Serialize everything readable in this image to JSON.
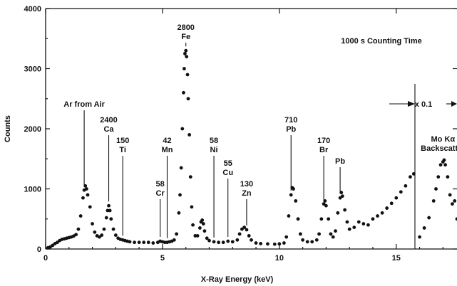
{
  "chart_data": {
    "type": "scatter",
    "title": "",
    "xlabel": "X-Ray Energy (keV)",
    "ylabel": "Counts",
    "xlim": [
      0,
      17.6
    ],
    "ylim": [
      0,
      4000
    ],
    "xticks": [
      "0",
      "5",
      "10",
      "15"
    ],
    "yticks": [
      "0",
      "1000",
      "2000",
      "3000",
      "4000"
    ],
    "grid": false,
    "series": [
      {
        "values": [
          [
            0.1,
            20
          ],
          [
            0.2,
            35
          ],
          [
            0.3,
            60
          ],
          [
            0.4,
            90
          ],
          [
            0.5,
            110
          ],
          [
            0.6,
            140
          ],
          [
            0.7,
            160
          ],
          [
            0.8,
            170
          ],
          [
            0.9,
            180
          ],
          [
            1.0,
            190
          ],
          [
            1.1,
            200
          ],
          [
            1.2,
            215
          ],
          [
            1.3,
            240
          ],
          [
            1.4,
            330
          ],
          [
            1.5,
            550
          ],
          [
            1.6,
            850
          ],
          [
            1.65,
            980
          ],
          [
            1.7,
            1050
          ],
          [
            1.75,
            1000
          ],
          [
            1.8,
            900
          ],
          [
            1.9,
            700
          ],
          [
            2.0,
            420
          ],
          [
            2.1,
            280
          ],
          [
            2.2,
            220
          ],
          [
            2.3,
            200
          ],
          [
            2.4,
            230
          ],
          [
            2.5,
            330
          ],
          [
            2.6,
            520
          ],
          [
            2.65,
            640
          ],
          [
            2.7,
            720
          ],
          [
            2.75,
            640
          ],
          [
            2.8,
            500
          ],
          [
            2.9,
            330
          ],
          [
            3.0,
            230
          ],
          [
            3.1,
            180
          ],
          [
            3.2,
            160
          ],
          [
            3.3,
            150
          ],
          [
            3.4,
            140
          ],
          [
            3.5,
            130
          ],
          [
            3.6,
            120
          ],
          [
            3.8,
            110
          ],
          [
            4.0,
            110
          ],
          [
            4.2,
            110
          ],
          [
            4.4,
            110
          ],
          [
            4.6,
            100
          ],
          [
            4.8,
            110
          ],
          [
            4.9,
            130
          ],
          [
            5.0,
            120
          ],
          [
            5.1,
            110
          ],
          [
            5.2,
            110
          ],
          [
            5.3,
            120
          ],
          [
            5.4,
            130
          ],
          [
            5.5,
            150
          ],
          [
            5.6,
            250
          ],
          [
            5.7,
            600
          ],
          [
            5.75,
            900
          ],
          [
            5.8,
            1350
          ],
          [
            5.85,
            2000
          ],
          [
            5.9,
            2600
          ],
          [
            5.93,
            3000
          ],
          [
            5.96,
            3250
          ],
          [
            6.0,
            3300
          ],
          [
            6.03,
            3200
          ],
          [
            6.07,
            2900
          ],
          [
            6.1,
            2500
          ],
          [
            6.15,
            1900
          ],
          [
            6.2,
            1200
          ],
          [
            6.25,
            700
          ],
          [
            6.3,
            400
          ],
          [
            6.4,
            220
          ],
          [
            6.5,
            220
          ],
          [
            6.6,
            350
          ],
          [
            6.65,
            450
          ],
          [
            6.7,
            480
          ],
          [
            6.75,
            420
          ],
          [
            6.8,
            300
          ],
          [
            6.9,
            180
          ],
          [
            7.0,
            140
          ],
          [
            7.2,
            120
          ],
          [
            7.4,
            110
          ],
          [
            7.6,
            110
          ],
          [
            7.8,
            130
          ],
          [
            8.0,
            120
          ],
          [
            8.2,
            150
          ],
          [
            8.3,
            250
          ],
          [
            8.4,
            330
          ],
          [
            8.5,
            360
          ],
          [
            8.6,
            320
          ],
          [
            8.7,
            220
          ],
          [
            8.8,
            150
          ],
          [
            9.0,
            100
          ],
          [
            9.2,
            90
          ],
          [
            9.5,
            85
          ],
          [
            9.8,
            80
          ],
          [
            10.0,
            85
          ],
          [
            10.2,
            100
          ],
          [
            10.3,
            200
          ],
          [
            10.4,
            550
          ],
          [
            10.5,
            900
          ],
          [
            10.55,
            1020
          ],
          [
            10.6,
            1000
          ],
          [
            10.7,
            800
          ],
          [
            10.8,
            500
          ],
          [
            10.9,
            250
          ],
          [
            11.0,
            150
          ],
          [
            11.2,
            120
          ],
          [
            11.4,
            120
          ],
          [
            11.6,
            150
          ],
          [
            11.7,
            250
          ],
          [
            11.8,
            500
          ],
          [
            11.9,
            750
          ],
          [
            11.95,
            800
          ],
          [
            12.0,
            720
          ],
          [
            12.1,
            500
          ],
          [
            12.2,
            250
          ],
          [
            12.3,
            200
          ],
          [
            12.4,
            300
          ],
          [
            12.5,
            600
          ],
          [
            12.6,
            850
          ],
          [
            12.65,
            940
          ],
          [
            12.7,
            880
          ],
          [
            12.8,
            650
          ],
          [
            12.9,
            450
          ],
          [
            13.0,
            330
          ],
          [
            13.2,
            360
          ],
          [
            13.4,
            450
          ],
          [
            13.6,
            420
          ],
          [
            13.8,
            400
          ],
          [
            14.0,
            500
          ],
          [
            14.2,
            550
          ],
          [
            14.4,
            600
          ],
          [
            14.6,
            680
          ],
          [
            14.8,
            760
          ],
          [
            15.0,
            850
          ],
          [
            15.2,
            950
          ],
          [
            15.4,
            1050
          ],
          [
            15.6,
            1200
          ],
          [
            15.75,
            1250
          ],
          [
            16.0,
            200
          ],
          [
            16.2,
            350
          ],
          [
            16.4,
            520
          ],
          [
            16.6,
            800
          ],
          [
            16.7,
            1000
          ],
          [
            16.8,
            1200
          ],
          [
            16.9,
            1400
          ],
          [
            17.0,
            1450
          ],
          [
            17.05,
            1480
          ],
          [
            17.1,
            1400
          ],
          [
            17.2,
            1200
          ],
          [
            17.3,
            900
          ],
          [
            17.4,
            750
          ],
          [
            17.5,
            800
          ],
          [
            17.6,
            500
          ]
        ]
      }
    ],
    "annotations": [
      {
        "lines": [
          "Ar from Air"
        ],
        "x": 1.65
      },
      {
        "lines": [
          "2400",
          "Ca"
        ],
        "x": 2.7
      },
      {
        "lines": [
          "150",
          "Ti"
        ],
        "x": 3.3
      },
      {
        "lines": [
          "58",
          "Cr"
        ],
        "x": 4.9
      },
      {
        "lines": [
          "42",
          "Mn"
        ],
        "x": 5.2
      },
      {
        "lines": [
          "2800",
          "Fe"
        ],
        "x": 6.0
      },
      {
        "lines": [
          "58",
          "Ni"
        ],
        "x": 7.2
      },
      {
        "lines": [
          "55",
          "Cu"
        ],
        "x": 7.8
      },
      {
        "lines": [
          "130",
          "Zn"
        ],
        "x": 8.6
      },
      {
        "lines": [
          "710",
          "Pb"
        ],
        "x": 10.5
      },
      {
        "lines": [
          "170",
          "Br"
        ],
        "x": 11.9
      },
      {
        "lines": [
          "Pb"
        ],
        "x": 12.6
      },
      {
        "lines": [
          "Mo Kα",
          "Backscatter"
        ],
        "x": 17.0
      }
    ],
    "counting_time_label": "1000 s Counting Time",
    "scale_break": {
      "x": 15.8,
      "label": "x 0.1"
    }
  }
}
